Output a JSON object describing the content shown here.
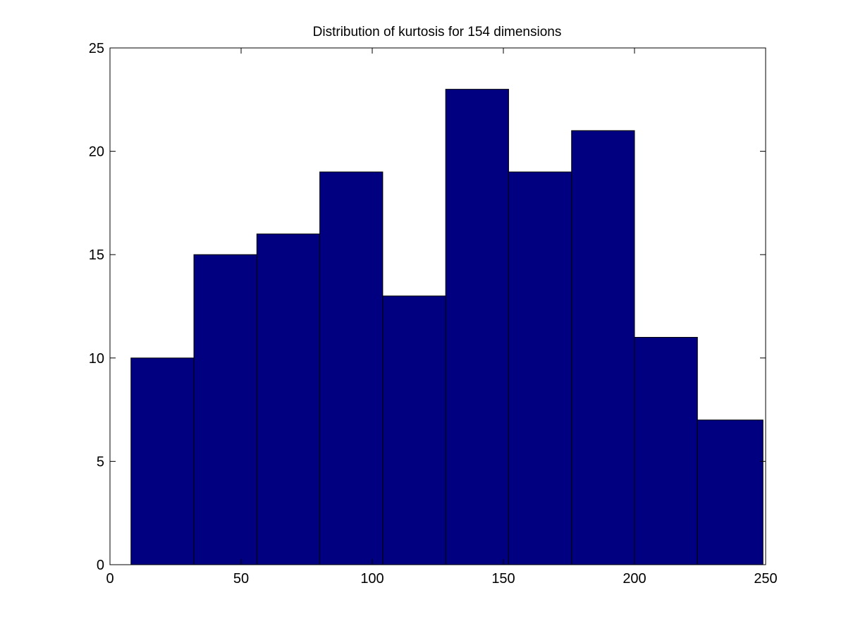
{
  "chart_data": {
    "type": "bar",
    "title": "Distribution of kurtosis for 154 dimensions",
    "xlabel": "",
    "ylabel": "",
    "xlim": [
      0,
      250
    ],
    "ylim": [
      0,
      25
    ],
    "bins": [
      {
        "x0": 8,
        "x1": 32,
        "count": 10
      },
      {
        "x0": 32,
        "x1": 56,
        "count": 15
      },
      {
        "x0": 56,
        "x1": 80,
        "count": 16
      },
      {
        "x0": 80,
        "x1": 104,
        "count": 19
      },
      {
        "x0": 104,
        "x1": 128,
        "count": 13
      },
      {
        "x0": 128,
        "x1": 152,
        "count": 23
      },
      {
        "x0": 152,
        "x1": 176,
        "count": 19
      },
      {
        "x0": 176,
        "x1": 200,
        "count": 21
      },
      {
        "x0": 200,
        "x1": 224,
        "count": 11
      },
      {
        "x0": 224,
        "x1": 249,
        "count": 7
      }
    ],
    "xticks": [
      0,
      50,
      100,
      150,
      200,
      250
    ],
    "yticks": [
      0,
      5,
      10,
      15,
      20,
      25
    ],
    "grid": false,
    "bar_color": "#000080",
    "edge_color": "#000000"
  }
}
